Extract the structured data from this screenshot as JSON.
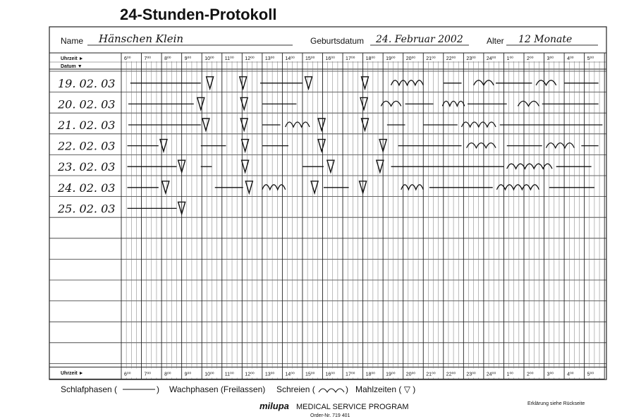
{
  "header": {
    "title": "24-Stunden-Protokoll",
    "name_label": "Name",
    "name": "Hänschen Klein",
    "birth_label": "Geburtsdatum",
    "birth": "24. Februar 2002",
    "age_label": "Alter",
    "age": "12 Monate"
  },
  "table": {
    "time_label": "Uhrzeit ►",
    "date_label": "Datum ▼",
    "hours": [
      "6⁰⁰",
      "7⁰⁰",
      "8⁰⁰",
      "9⁰⁰",
      "10⁰⁰",
      "11⁰⁰",
      "12⁰⁰",
      "13⁰⁰",
      "14⁰⁰",
      "15⁰⁰",
      "16⁰⁰",
      "17⁰⁰",
      "18⁰⁰",
      "19⁰⁰",
      "20⁰⁰",
      "21⁰⁰",
      "22⁰⁰",
      "23⁰⁰",
      "24⁰⁰",
      "1⁰⁰",
      "2⁰⁰",
      "3⁰⁰",
      "4⁰⁰",
      "5⁰⁰"
    ],
    "rows": [
      {
        "date": "19. 02. 03",
        "sleep": [
          [
            6.45,
            9.95
          ],
          [
            12.9,
            15.0
          ],
          [
            22.0,
            22.9
          ],
          [
            24.6,
            26.4
          ],
          [
            28.0,
            29.7
          ]
        ],
        "cry": [
          [
            19.4,
            21.0
          ],
          [
            23.5,
            24.5
          ],
          [
            26.6,
            27.6
          ]
        ],
        "meals": [
          10.4,
          12.05,
          15.3,
          18.1
        ]
      },
      {
        "date": "20. 02. 03",
        "sleep": [
          [
            6.35,
            9.6
          ],
          [
            13.0,
            14.7
          ],
          [
            20.1,
            21.5
          ],
          [
            23.2,
            25.15
          ],
          [
            26.9,
            29.7
          ]
        ],
        "cry": [
          [
            18.9,
            19.9
          ],
          [
            21.95,
            23.05
          ],
          [
            25.7,
            26.75
          ]
        ],
        "meals": [
          9.95,
          12.1,
          18.05
        ]
      },
      {
        "date": "21. 02. 03",
        "sleep": [
          [
            6.35,
            9.95
          ],
          [
            13.0,
            13.9
          ],
          [
            19.2,
            20.1
          ],
          [
            21.0,
            22.7
          ],
          [
            24.8,
            29.9
          ]
        ],
        "cry": [
          [
            14.15,
            15.35
          ],
          [
            22.9,
            24.6
          ]
        ],
        "meals": [
          10.2,
          12.1,
          15.95,
          18.1
        ]
      },
      {
        "date": "22. 02. 03",
        "sleep": [
          [
            6.3,
            7.85
          ],
          [
            9.95,
            11.2
          ],
          [
            13.0,
            14.3
          ],
          [
            19.75,
            22.9
          ],
          [
            25.15,
            26.9
          ],
          [
            28.85,
            29.7
          ]
        ],
        "cry": [
          [
            23.15,
            24.6
          ],
          [
            27.1,
            28.5
          ]
        ],
        "meals": [
          8.1,
          12.15,
          15.95,
          19.0
        ]
      },
      {
        "date": "23. 02. 03",
        "sleep": [
          [
            6.3,
            8.75
          ],
          [
            9.95,
            10.5
          ],
          [
            15.0,
            16.05
          ],
          [
            19.4,
            25.0
          ],
          [
            27.6,
            29.35
          ]
        ],
        "cry": [
          [
            25.15,
            27.4
          ]
        ],
        "meals": [
          9.0,
          12.15,
          16.4,
          18.85
        ]
      },
      {
        "date": "24. 02. 03",
        "sleep": [
          [
            6.3,
            7.85
          ],
          [
            10.65,
            12.05
          ],
          [
            16.05,
            17.3
          ],
          [
            21.3,
            24.45
          ],
          [
            27.25,
            29.5
          ]
        ],
        "cry": [
          [
            13.0,
            14.15
          ],
          [
            19.9,
            21.0
          ],
          [
            24.65,
            26.75
          ]
        ],
        "meals": [
          8.2,
          12.35,
          15.6,
          18.0
        ]
      },
      {
        "date": "25. 02. 03",
        "sleep": [
          [
            6.3,
            8.75
          ]
        ],
        "cry": [],
        "meals": [
          9.0
        ]
      }
    ]
  },
  "legend": {
    "sleep": "Schlafphasen (",
    "sleep_end": ")",
    "awake": "Wachphasen (Freilassen)",
    "cry": "Schreien (",
    "cry_end": ")",
    "meals": "Mahlzeiten ( ▽ )"
  },
  "footer": {
    "brand": "milupa",
    "program": "MEDICAL SERVICE PROGRAM",
    "order": "Order-Nr. 719 401",
    "note": "Erklärung siehe Rückseite"
  }
}
